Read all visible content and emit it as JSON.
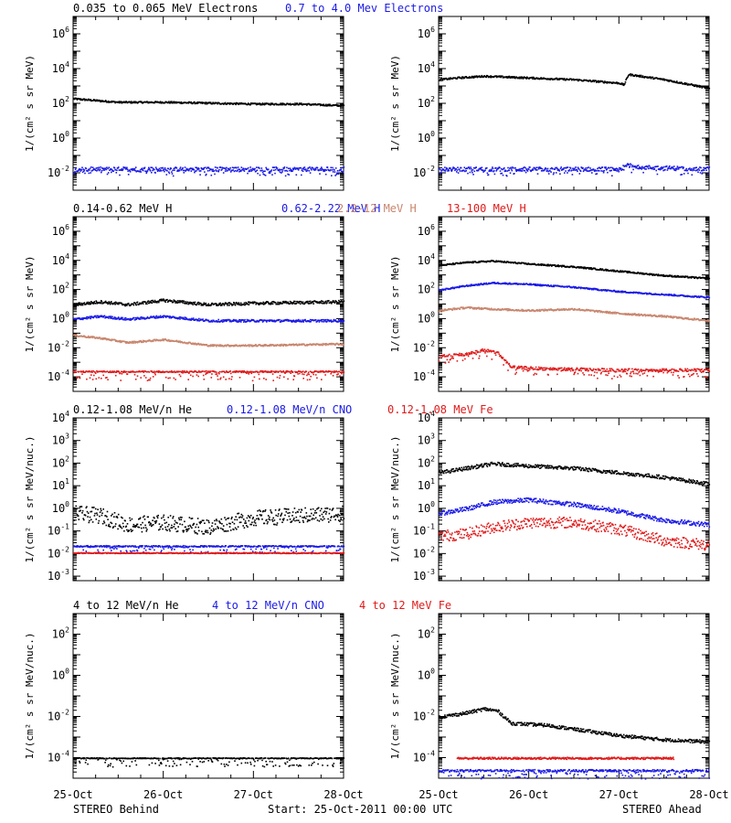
{
  "colors": {
    "black": "#000000",
    "blue": "#1a1ae6",
    "tan": "#c8866e",
    "red": "#e01a1a"
  },
  "footer": {
    "left": "STEREO Behind",
    "center": "Start: 25-Oct-2011 00:00 UTC",
    "right": "STEREO Ahead"
  },
  "x_ticks": [
    "25-Oct",
    "26-Oct",
    "27-Oct",
    "28-Oct"
  ],
  "chart_data": [
    {
      "type": "scatter",
      "row": 1,
      "legend": [
        {
          "label": "0.035 to 0.065 MeV Electrons",
          "color": "black"
        },
        {
          "label": "0.7 to 4.0 Mev Electrons",
          "color": "blue"
        }
      ],
      "ylabel": "1/(cm² s sr MeV)",
      "yscale": "log",
      "ylim_exp": [
        -3,
        7
      ],
      "ytick_exps": [
        -2,
        0,
        2,
        4,
        6
      ],
      "xlim": [
        0,
        3
      ],
      "panels": [
        {
          "side": "behind",
          "series": [
            {
              "name": "0.035 to 0.065 MeV Electrons",
              "color": "black",
              "x": [
                0,
                0.5,
                1,
                1.5,
                2,
                2.5,
                3
              ],
              "logy": [
                2.3,
                2.1,
                2.1,
                2.05,
                2.0,
                2.0,
                1.9
              ],
              "jitter": 0.05,
              "spread": 0
            },
            {
              "name": "0.7 to 4.0 Mev Electrons",
              "color": "blue",
              "x": [
                0,
                3
              ],
              "logy": [
                -1.75,
                -1.75
              ],
              "jitter": 0.12,
              "spread": 0.3
            }
          ]
        },
        {
          "side": "ahead",
          "series": [
            {
              "name": "0.035 to 0.065 MeV Electrons",
              "color": "black",
              "x": [
                0,
                0.2,
                0.5,
                1,
                1.5,
                2,
                2.05,
                2.1,
                2.5,
                3
              ],
              "logy": [
                3.4,
                3.5,
                3.6,
                3.5,
                3.4,
                3.2,
                3.1,
                3.7,
                3.4,
                2.9
              ],
              "jitter": 0.05,
              "spread": 0
            },
            {
              "name": "0.7 to 4.0 Mev Electrons",
              "color": "blue",
              "x": [
                0,
                2.0,
                2.1,
                2.3,
                3
              ],
              "logy": [
                -1.75,
                -1.75,
                -1.5,
                -1.65,
                -1.75
              ],
              "jitter": 0.12,
              "spread": 0.3
            }
          ]
        }
      ]
    },
    {
      "type": "scatter",
      "row": 2,
      "legend": [
        {
          "label": "0.14-0.62 MeV H",
          "color": "black"
        },
        {
          "label": "0.62-2.22 MeV H",
          "color": "blue"
        },
        {
          "label": "2.2-12 MeV H",
          "color": "tan"
        },
        {
          "label": "13-100 MeV H",
          "color": "red"
        }
      ],
      "ylabel": "1/(cm² s sr MeV)",
      "yscale": "log",
      "ylim_exp": [
        -5,
        7
      ],
      "ytick_exps": [
        -4,
        -2,
        0,
        2,
        4,
        6
      ],
      "xlim": [
        0,
        3
      ],
      "panels": [
        {
          "side": "behind",
          "series": [
            {
              "name": "0.14-0.62 MeV H",
              "color": "black",
              "x": [
                0,
                0.3,
                0.6,
                1,
                1.5,
                2,
                3
              ],
              "logy": [
                1.0,
                1.2,
                1.0,
                1.3,
                1.0,
                1.1,
                1.2
              ],
              "jitter": 0.1,
              "spread": 0
            },
            {
              "name": "0.62-2.22 MeV H",
              "color": "blue",
              "x": [
                0,
                0.3,
                0.6,
                1,
                1.5,
                2,
                3
              ],
              "logy": [
                0.0,
                0.2,
                0.0,
                0.2,
                -0.1,
                -0.1,
                -0.1
              ],
              "jitter": 0.08,
              "spread": 0
            },
            {
              "name": "2.2-12 MeV H",
              "color": "tan",
              "x": [
                0,
                0.3,
                0.6,
                1,
                1.5,
                2,
                3
              ],
              "logy": [
                -1.1,
                -1.3,
                -1.6,
                -1.4,
                -1.8,
                -1.8,
                -1.7
              ],
              "jitter": 0.06,
              "spread": 0
            },
            {
              "name": "13-100 MeV H",
              "color": "red",
              "x": [
                0,
                3
              ],
              "logy": [
                -3.6,
                -3.6
              ],
              "jitter": 0.05,
              "spread": 0.6
            }
          ]
        },
        {
          "side": "ahead",
          "series": [
            {
              "name": "0.14-0.62 MeV H",
              "color": "black",
              "x": [
                0,
                0.3,
                0.6,
                1,
                1.5,
                2,
                2.5,
                3
              ],
              "logy": [
                3.7,
                3.9,
                4.0,
                3.8,
                3.6,
                3.3,
                3.0,
                2.8
              ],
              "jitter": 0.05,
              "spread": 0
            },
            {
              "name": "0.62-2.22 MeV H",
              "color": "blue",
              "x": [
                0,
                0.3,
                0.6,
                1,
                1.5,
                2,
                2.5,
                3
              ],
              "logy": [
                2.0,
                2.3,
                2.5,
                2.4,
                2.2,
                1.9,
                1.7,
                1.5
              ],
              "jitter": 0.05,
              "spread": 0
            },
            {
              "name": "2.2-12 MeV H",
              "color": "tan",
              "x": [
                0,
                0.3,
                0.6,
                1,
                1.5,
                2,
                2.5,
                3
              ],
              "logy": [
                0.6,
                0.8,
                0.7,
                0.6,
                0.7,
                0.4,
                0.2,
                -0.1
              ],
              "jitter": 0.06,
              "spread": 0
            },
            {
              "name": "13-100 MeV H",
              "color": "red",
              "x": [
                0,
                0.3,
                0.5,
                0.65,
                0.8,
                1.2,
                2,
                3
              ],
              "logy": [
                -2.5,
                -2.4,
                -2.1,
                -2.3,
                -3.3,
                -3.4,
                -3.5,
                -3.5
              ],
              "jitter": 0.1,
              "spread": 0.5
            }
          ]
        }
      ]
    },
    {
      "type": "scatter",
      "row": 3,
      "legend": [
        {
          "label": "0.12-1.08 MeV/n He",
          "color": "black"
        },
        {
          "label": "0.12-1.08 MeV/n CNO",
          "color": "blue"
        },
        {
          "label": "0.12-1.08 MeV Fe",
          "color": "red"
        }
      ],
      "ylabel": "1/(cm² s sr MeV/nuc.)",
      "yscale": "log",
      "ylim_exp": [
        -3.2,
        4
      ],
      "ytick_exps": [
        -3,
        -2,
        -1,
        0,
        1,
        2,
        3,
        4
      ],
      "xlim": [
        0,
        3
      ],
      "panels": [
        {
          "side": "behind",
          "series": [
            {
              "name": "0.12-1.08 MeV/n He",
              "color": "black",
              "x": [
                0,
                0.3,
                0.6,
                1,
                1.5,
                2,
                2.5,
                3
              ],
              "logy": [
                -0.2,
                -0.3,
                -0.7,
                -0.6,
                -0.8,
                -0.4,
                -0.3,
                -0.2
              ],
              "jitter": 0.35,
              "spread": 0
            },
            {
              "name": "0.12-1.08 MeV/n CNO",
              "color": "blue",
              "x": [
                0,
                3
              ],
              "logy": [
                -1.65,
                -1.65
              ],
              "jitter": 0.03,
              "spread": 0.3
            },
            {
              "name": "0.12-1.08 MeV Fe",
              "color": "red",
              "x": [
                0,
                3
              ],
              "logy": [
                -1.95,
                -1.95
              ],
              "jitter": 0.02,
              "spread": 0
            }
          ]
        },
        {
          "side": "ahead",
          "series": [
            {
              "name": "0.12-1.08 MeV/n He",
              "color": "black",
              "x": [
                0,
                0.3,
                0.6,
                1,
                1.5,
                2,
                2.5,
                3
              ],
              "logy": [
                1.6,
                1.8,
                2.0,
                1.9,
                1.8,
                1.6,
                1.4,
                1.1
              ],
              "jitter": 0.08,
              "spread": 0
            },
            {
              "name": "0.12-1.08 MeV/n CNO",
              "color": "blue",
              "x": [
                0,
                0.3,
                0.6,
                1,
                1.5,
                2,
                2.5,
                3
              ],
              "logy": [
                -0.2,
                0.0,
                0.3,
                0.4,
                0.2,
                -0.1,
                -0.5,
                -0.7
              ],
              "jitter": 0.1,
              "spread": 0
            },
            {
              "name": "0.12-1.08 MeV Fe",
              "color": "red",
              "x": [
                0,
                0.3,
                0.6,
                1,
                1.5,
                2,
                2.5,
                3
              ],
              "logy": [
                -1.2,
                -1.1,
                -0.8,
                -0.6,
                -0.6,
                -0.9,
                -1.4,
                -1.6
              ],
              "jitter": 0.25,
              "spread": 0
            }
          ]
        }
      ]
    },
    {
      "type": "scatter",
      "row": 4,
      "legend": [
        {
          "label": "4 to 12 MeV/n He",
          "color": "black"
        },
        {
          "label": "4 to 12 MeV/n CNO",
          "color": "blue"
        },
        {
          "label": "4 to 12 MeV Fe",
          "color": "red"
        }
      ],
      "ylabel": "1/(cm² s sr MeV/nuc.)",
      "yscale": "log",
      "ylim_exp": [
        -5,
        3
      ],
      "ytick_exps": [
        -4,
        -2,
        0,
        2
      ],
      "xlim": [
        0,
        3
      ],
      "panels": [
        {
          "side": "behind",
          "series": [
            {
              "name": "4 to 12 MeV/n He",
              "color": "black",
              "x": [
                0,
                3
              ],
              "logy": [
                -4.0,
                -4.0
              ],
              "jitter": 0.02,
              "spread": 0.4
            }
          ]
        },
        {
          "side": "ahead",
          "series": [
            {
              "name": "4 to 12 MeV/n He",
              "color": "black",
              "x": [
                0,
                0.3,
                0.5,
                0.65,
                0.8,
                1.2,
                2,
                2.5,
                3
              ],
              "logy": [
                -2.0,
                -1.8,
                -1.6,
                -1.7,
                -2.3,
                -2.4,
                -2.9,
                -3.1,
                -3.2
              ],
              "jitter": 0.08,
              "spread": 0
            },
            {
              "name": "4 to 12 MeV/n CNO",
              "color": "blue",
              "x": [
                0,
                3
              ],
              "logy": [
                -4.6,
                -4.6
              ],
              "jitter": 0.05,
              "spread": 0.5
            },
            {
              "name": "4 to 12 MeV Fe",
              "color": "red",
              "x": [
                0.2,
                0.5,
                2.3,
                2.6
              ],
              "logy": [
                -4.0,
                -4.0,
                -4.0,
                -4.0
              ],
              "jitter": 0.05,
              "spread": 0
            }
          ]
        }
      ]
    }
  ]
}
